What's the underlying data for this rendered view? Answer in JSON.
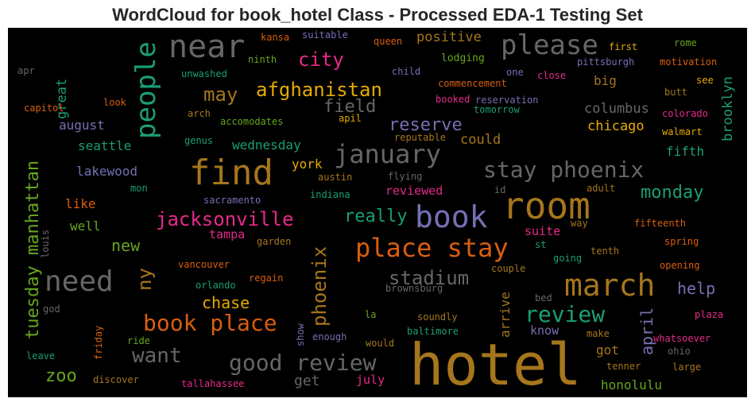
{
  "title": "WordCloud for book_hotel Class - Processed EDA-1 Testing Set",
  "palette": {
    "background": "#000000",
    "title_text": "#262626",
    "orange": "#d95f0e",
    "gold": "#e6ab02",
    "teal": "#1b9e77",
    "purple": "#7570b3",
    "pink": "#e7298a",
    "green": "#66a61e",
    "brown": "#a6761d",
    "gray": "#666666"
  },
  "words": [
    {
      "text": "hotel",
      "color": "#a6761d"
    },
    {
      "text": "room",
      "color": "#a6761d"
    },
    {
      "text": "find",
      "color": "#a6761d"
    },
    {
      "text": "near",
      "color": "#666666"
    },
    {
      "text": "book",
      "color": "#7570b3"
    },
    {
      "text": "march",
      "color": "#a6761d"
    },
    {
      "text": "place stay",
      "color": "#d95f0e"
    },
    {
      "text": "need",
      "color": "#666666"
    },
    {
      "text": "people",
      "color": "#1b9e77"
    },
    {
      "text": "please",
      "color": "#666666"
    },
    {
      "text": "january",
      "color": "#666666"
    },
    {
      "text": "stay phoenix",
      "color": "#666666"
    },
    {
      "text": "good review",
      "color": "#666666"
    },
    {
      "text": "book place",
      "color": "#d95f0e"
    },
    {
      "text": "review",
      "color": "#1b9e77"
    },
    {
      "text": "jacksonville",
      "color": "#e7298a"
    },
    {
      "text": "afghanistan",
      "color": "#e6ab02"
    },
    {
      "text": "tuesday manhattan",
      "color": "#66a61e"
    },
    {
      "text": "stadium",
      "color": "#666666"
    },
    {
      "text": "phoenix",
      "color": "#a6761d"
    },
    {
      "text": "want",
      "color": "#666666"
    },
    {
      "text": "city",
      "color": "#e7298a"
    },
    {
      "text": "may",
      "color": "#a6761d"
    },
    {
      "text": "reserve",
      "color": "#7570b3"
    },
    {
      "text": "monday",
      "color": "#1b9e77"
    },
    {
      "text": "really",
      "color": "#1b9e77"
    },
    {
      "text": "field",
      "color": "#666666"
    },
    {
      "text": "ny",
      "color": "#a6761d"
    },
    {
      "text": "chase",
      "color": "#e6ab02"
    },
    {
      "text": "help",
      "color": "#7570b3"
    },
    {
      "text": "zoo",
      "color": "#66a61e"
    },
    {
      "text": "april",
      "color": "#7570b3"
    },
    {
      "text": "brooklyn",
      "color": "#1b9e77"
    },
    {
      "text": "great",
      "color": "#1b9e77"
    },
    {
      "text": "positive",
      "color": "#a6761d"
    },
    {
      "text": "chicago",
      "color": "#e6ab02"
    },
    {
      "text": "columbus",
      "color": "#666666"
    },
    {
      "text": "could",
      "color": "#a6761d"
    },
    {
      "text": "august",
      "color": "#7570b3"
    },
    {
      "text": "seattle",
      "color": "#1b9e77"
    },
    {
      "text": "lakewood",
      "color": "#7570b3"
    },
    {
      "text": "wednesday",
      "color": "#1b9e77"
    },
    {
      "text": "york",
      "color": "#e6ab02"
    },
    {
      "text": "new",
      "color": "#66a61e"
    },
    {
      "text": "like",
      "color": "#d95f0e"
    },
    {
      "text": "well",
      "color": "#66a61e"
    },
    {
      "text": "tampa",
      "color": "#e7298a"
    },
    {
      "text": "big",
      "color": "#a6761d"
    },
    {
      "text": "fifth",
      "color": "#1b9e77"
    },
    {
      "text": "suite",
      "color": "#e7298a"
    },
    {
      "text": "reviewed",
      "color": "#e7298a"
    },
    {
      "text": "get",
      "color": "#666666"
    },
    {
      "text": "july",
      "color": "#e7298a"
    },
    {
      "text": "honolulu",
      "color": "#66a61e"
    },
    {
      "text": "know",
      "color": "#7570b3"
    },
    {
      "text": "arrive",
      "color": "#a6761d"
    },
    {
      "text": "got",
      "color": "#a6761d"
    },
    {
      "text": "lodging",
      "color": "#66a61e"
    },
    {
      "text": "city",
      "color": "#e7298a"
    },
    {
      "text": "kansa",
      "color": "#d95f0e"
    },
    {
      "text": "suitable",
      "color": "#7570b3"
    },
    {
      "text": "queen",
      "color": "#d95f0e"
    },
    {
      "text": "first",
      "color": "#e6ab02"
    },
    {
      "text": "rome",
      "color": "#66a61e"
    },
    {
      "text": "pittsburgh",
      "color": "#7570b3"
    },
    {
      "text": "motivation",
      "color": "#d95f0e"
    },
    {
      "text": "ninth",
      "color": "#66a61e"
    },
    {
      "text": "child",
      "color": "#7570b3"
    },
    {
      "text": "one",
      "color": "#7570b3"
    },
    {
      "text": "close",
      "color": "#e7298a"
    },
    {
      "text": "apr",
      "color": "#666666"
    },
    {
      "text": "unwashed",
      "color": "#1b9e77"
    },
    {
      "text": "commencement",
      "color": "#d95f0e"
    },
    {
      "text": "see",
      "color": "#e6ab02"
    },
    {
      "text": "butt",
      "color": "#a6761d"
    },
    {
      "text": "capitol",
      "color": "#d95f0e"
    },
    {
      "text": "look",
      "color": "#d95f0e"
    },
    {
      "text": "booked",
      "color": "#e7298a"
    },
    {
      "text": "reservation",
      "color": "#7570b3"
    },
    {
      "text": "arch",
      "color": "#a6761d"
    },
    {
      "text": "accomodates",
      "color": "#66a61e"
    },
    {
      "text": "tomorrow",
      "color": "#1b9e77"
    },
    {
      "text": "apil",
      "color": "#e6ab02"
    },
    {
      "text": "colorado",
      "color": "#e7298a"
    },
    {
      "text": "walmart",
      "color": "#e6ab02"
    },
    {
      "text": "genus",
      "color": "#1b9e77"
    },
    {
      "text": "reputable",
      "color": "#a6761d"
    },
    {
      "text": "mon",
      "color": "#1b9e77"
    },
    {
      "text": "austin",
      "color": "#a6761d"
    },
    {
      "text": "flying",
      "color": "#666666"
    },
    {
      "text": "id",
      "color": "#666666"
    },
    {
      "text": "adult",
      "color": "#a6761d"
    },
    {
      "text": "sacramento",
      "color": "#7570b3"
    },
    {
      "text": "indiana",
      "color": "#1b9e77"
    },
    {
      "text": "way",
      "color": "#a6761d"
    },
    {
      "text": "fifteenth",
      "color": "#d95f0e"
    },
    {
      "text": "louis",
      "color": "#666666"
    },
    {
      "text": "garden",
      "color": "#a6761d"
    },
    {
      "text": "spring",
      "color": "#d95f0e"
    },
    {
      "text": "st",
      "color": "#1b9e77"
    },
    {
      "text": "tenth",
      "color": "#a6761d"
    },
    {
      "text": "vancouver",
      "color": "#d95f0e"
    },
    {
      "text": "going",
      "color": "#1b9e77"
    },
    {
      "text": "opening",
      "color": "#d95f0e"
    },
    {
      "text": "orlando",
      "color": "#1b9e77"
    },
    {
      "text": "regain",
      "color": "#d95f0e"
    },
    {
      "text": "couple",
      "color": "#a6761d"
    },
    {
      "text": "brownsburg",
      "color": "#666666"
    },
    {
      "text": "god",
      "color": "#666666"
    },
    {
      "text": "bed",
      "color": "#666666"
    },
    {
      "text": "plaza",
      "color": "#e7298a"
    },
    {
      "text": "la",
      "color": "#66a61e"
    },
    {
      "text": "soundly",
      "color": "#a6761d"
    },
    {
      "text": "show",
      "color": "#7570b3"
    },
    {
      "text": "baltimore",
      "color": "#1b9e77"
    },
    {
      "text": "whatsoever",
      "color": "#e7298a"
    },
    {
      "text": "friday",
      "color": "#d95f0e"
    },
    {
      "text": "ride",
      "color": "#66a61e"
    },
    {
      "text": "enough",
      "color": "#7570b3"
    },
    {
      "text": "would",
      "color": "#a6761d"
    },
    {
      "text": "make",
      "color": "#a6761d"
    },
    {
      "text": "ohio",
      "color": "#666666"
    },
    {
      "text": "leave",
      "color": "#1b9e77"
    },
    {
      "text": "tenner",
      "color": "#a6761d"
    },
    {
      "text": "large",
      "color": "#a6761d"
    },
    {
      "text": "discover",
      "color": "#a6761d"
    },
    {
      "text": "tallahassee",
      "color": "#e7298a"
    }
  ]
}
